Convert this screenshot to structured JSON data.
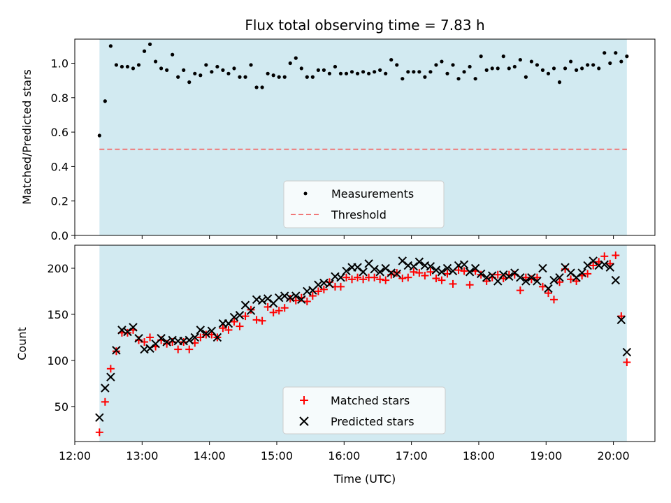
{
  "chart_data": [
    {
      "type": "scatter",
      "title": "Flux total observing time = 7.83 h",
      "xlabel": "",
      "ylabel": "Matched/Predicted stars",
      "ylim": [
        0,
        1.14
      ],
      "yticks": [
        "0.0",
        "0.2",
        "0.4",
        "0.6",
        "0.8",
        "1.0"
      ],
      "xlim": [
        "12:00",
        "20:37"
      ],
      "shaded_span": [
        "12:22",
        "20:12"
      ],
      "legend_position": "lower center",
      "series": [
        {
          "name": "Measurements",
          "marker": "dot",
          "color": "#000000",
          "x": [
            "12:22",
            "12:27",
            "12:32",
            "12:37",
            "12:42",
            "12:47",
            "12:52",
            "12:57",
            "13:02",
            "13:07",
            "13:12",
            "13:17",
            "13:22",
            "13:27",
            "13:32",
            "13:37",
            "13:42",
            "13:47",
            "13:52",
            "13:57",
            "14:02",
            "14:07",
            "14:12",
            "14:17",
            "14:22",
            "14:27",
            "14:32",
            "14:37",
            "14:42",
            "14:47",
            "14:52",
            "14:57",
            "15:02",
            "15:07",
            "15:12",
            "15:17",
            "15:22",
            "15:27",
            "15:32",
            "15:37",
            "15:42",
            "15:47",
            "15:52",
            "15:57",
            "16:02",
            "16:07",
            "16:12",
            "16:17",
            "16:22",
            "16:27",
            "16:32",
            "16:37",
            "16:42",
            "16:47",
            "16:52",
            "16:57",
            "17:02",
            "17:07",
            "17:12",
            "17:17",
            "17:22",
            "17:27",
            "17:32",
            "17:37",
            "17:42",
            "17:47",
            "17:52",
            "17:57",
            "18:02",
            "18:07",
            "18:12",
            "18:17",
            "18:22",
            "18:27",
            "18:32",
            "18:37",
            "18:42",
            "18:47",
            "18:52",
            "18:57",
            "19:02",
            "19:07",
            "19:12",
            "19:17",
            "19:22",
            "19:27",
            "19:32",
            "19:37",
            "19:42",
            "19:47",
            "19:52",
            "19:57",
            "20:02",
            "20:07",
            "20:12"
          ],
          "values": [
            0.58,
            0.78,
            1.1,
            0.99,
            0.98,
            0.98,
            0.97,
            0.99,
            1.07,
            1.11,
            1.01,
            0.97,
            0.96,
            1.05,
            0.92,
            0.96,
            0.89,
            0.94,
            0.93,
            0.99,
            0.95,
            0.98,
            0.96,
            0.94,
            0.97,
            0.92,
            0.92,
            0.99,
            0.86,
            0.86,
            0.94,
            0.93,
            0.92,
            0.92,
            1.0,
            1.03,
            0.97,
            0.92,
            0.92,
            0.96,
            0.96,
            0.94,
            0.98,
            0.94,
            0.94,
            0.95,
            0.94,
            0.95,
            0.94,
            0.95,
            0.96,
            0.94,
            1.02,
            0.99,
            0.91,
            0.95,
            0.95,
            0.95,
            0.92,
            0.95,
            0.99,
            1.01,
            0.94,
            0.99,
            0.91,
            0.95,
            0.98,
            0.91,
            1.04,
            0.96,
            0.97,
            0.97,
            1.04,
            0.97,
            0.98,
            1.02,
            0.92,
            1.01,
            0.99,
            0.96,
            0.94,
            0.97,
            0.89,
            0.97,
            1.01,
            0.96,
            0.97,
            0.99,
            0.99,
            0.97,
            1.06,
            1.0,
            1.06,
            1.01,
            1.04
          ]
        },
        {
          "name": "Threshold",
          "marker": "dashed-line",
          "color": "#f07878",
          "x": [
            "12:22",
            "20:12"
          ],
          "values": [
            0.5,
            0.5
          ]
        }
      ]
    },
    {
      "type": "scatter",
      "title": "",
      "xlabel": "Time (UTC)",
      "ylabel": "Count",
      "ylim": [
        12,
        225
      ],
      "yticks": [
        "50",
        "100",
        "150",
        "200"
      ],
      "xticks": [
        "12:00",
        "13:00",
        "14:00",
        "15:00",
        "16:00",
        "17:00",
        "18:00",
        "19:00",
        "20:00"
      ],
      "xlim": [
        "12:00",
        "20:37"
      ],
      "shaded_span": [
        "12:22",
        "20:12"
      ],
      "legend_position": "lower center",
      "series": [
        {
          "name": "Matched stars",
          "marker": "plus",
          "color": "#ff0000",
          "x": [
            "12:22",
            "12:27",
            "12:32",
            "12:37",
            "12:42",
            "12:47",
            "12:52",
            "12:57",
            "13:02",
            "13:07",
            "13:12",
            "13:17",
            "13:22",
            "13:27",
            "13:32",
            "13:37",
            "13:42",
            "13:47",
            "13:52",
            "13:57",
            "14:02",
            "14:07",
            "14:12",
            "14:17",
            "14:22",
            "14:27",
            "14:32",
            "14:37",
            "14:42",
            "14:47",
            "14:52",
            "14:57",
            "15:02",
            "15:07",
            "15:12",
            "15:17",
            "15:22",
            "15:27",
            "15:32",
            "15:37",
            "15:42",
            "15:47",
            "15:52",
            "15:57",
            "16:02",
            "16:07",
            "16:12",
            "16:17",
            "16:22",
            "16:27",
            "16:32",
            "16:37",
            "16:42",
            "16:47",
            "16:52",
            "16:57",
            "17:02",
            "17:07",
            "17:12",
            "17:17",
            "17:22",
            "17:27",
            "17:32",
            "17:37",
            "17:42",
            "17:47",
            "17:52",
            "17:57",
            "18:02",
            "18:07",
            "18:12",
            "18:17",
            "18:22",
            "18:27",
            "18:32",
            "18:37",
            "18:42",
            "18:47",
            "18:52",
            "18:57",
            "19:02",
            "19:07",
            "19:12",
            "19:17",
            "19:22",
            "19:27",
            "19:32",
            "19:37",
            "19:42",
            "19:47",
            "19:52",
            "19:57",
            "20:02",
            "20:07",
            "20:12"
          ],
          "values": [
            22,
            55,
            91,
            110,
            130,
            130,
            133,
            122,
            120,
            125,
            115,
            122,
            118,
            120,
            112,
            120,
            112,
            119,
            125,
            128,
            128,
            125,
            135,
            133,
            142,
            137,
            148,
            155,
            144,
            143,
            158,
            152,
            154,
            157,
            167,
            165,
            168,
            164,
            170,
            175,
            177,
            185,
            180,
            180,
            190,
            188,
            190,
            188,
            190,
            190,
            188,
            187,
            193,
            195,
            189,
            190,
            196,
            195,
            192,
            196,
            189,
            187,
            194,
            183,
            198,
            197,
            182,
            197,
            193,
            186,
            190,
            193,
            189,
            193,
            193,
            176,
            190,
            188,
            190,
            180,
            173,
            166,
            185,
            199,
            188,
            186,
            192,
            194,
            203,
            207,
            213,
            205,
            214,
            148,
            98
          ]
        },
        {
          "name": "Predicted stars",
          "marker": "x",
          "color": "#000000",
          "x": [
            "12:22",
            "12:27",
            "12:32",
            "12:37",
            "12:42",
            "12:47",
            "12:52",
            "12:57",
            "13:02",
            "13:07",
            "13:12",
            "13:17",
            "13:22",
            "13:27",
            "13:32",
            "13:37",
            "13:42",
            "13:47",
            "13:52",
            "13:57",
            "14:02",
            "14:07",
            "14:12",
            "14:17",
            "14:22",
            "14:27",
            "14:32",
            "14:37",
            "14:42",
            "14:47",
            "14:52",
            "14:57",
            "15:02",
            "15:07",
            "15:12",
            "15:17",
            "15:22",
            "15:27",
            "15:32",
            "15:37",
            "15:42",
            "15:47",
            "15:52",
            "15:57",
            "16:02",
            "16:07",
            "16:12",
            "16:17",
            "16:22",
            "16:27",
            "16:32",
            "16:37",
            "16:42",
            "16:47",
            "16:52",
            "16:57",
            "17:02",
            "17:07",
            "17:12",
            "17:17",
            "17:22",
            "17:27",
            "17:32",
            "17:37",
            "17:42",
            "17:47",
            "17:52",
            "17:57",
            "18:02",
            "18:07",
            "18:12",
            "18:17",
            "18:22",
            "18:27",
            "18:32",
            "18:37",
            "18:42",
            "18:47",
            "18:52",
            "18:57",
            "19:02",
            "19:07",
            "19:12",
            "19:17",
            "19:22",
            "19:27",
            "19:32",
            "19:37",
            "19:42",
            "19:47",
            "19:52",
            "19:57",
            "20:02",
            "20:07",
            "20:12"
          ],
          "values": [
            38,
            70,
            82,
            111,
            133,
            131,
            136,
            124,
            112,
            113,
            118,
            124,
            120,
            122,
            121,
            121,
            122,
            125,
            133,
            129,
            132,
            125,
            140,
            140,
            147,
            149,
            160,
            154,
            166,
            165,
            167,
            162,
            168,
            170,
            168,
            170,
            166,
            175,
            176,
            182,
            184,
            183,
            191,
            190,
            197,
            201,
            201,
            196,
            205,
            199,
            196,
            200,
            195,
            194,
            208,
            203,
            202,
            207,
            203,
            202,
            198,
            196,
            200,
            197,
            203,
            204,
            196,
            200,
            194,
            190,
            192,
            186,
            193,
            191,
            195,
            190,
            186,
            190,
            186,
            200,
            178,
            187,
            190,
            201,
            195,
            190,
            195,
            203,
            208,
            203,
            204,
            201,
            187,
            144,
            109
          ]
        }
      ]
    }
  ]
}
